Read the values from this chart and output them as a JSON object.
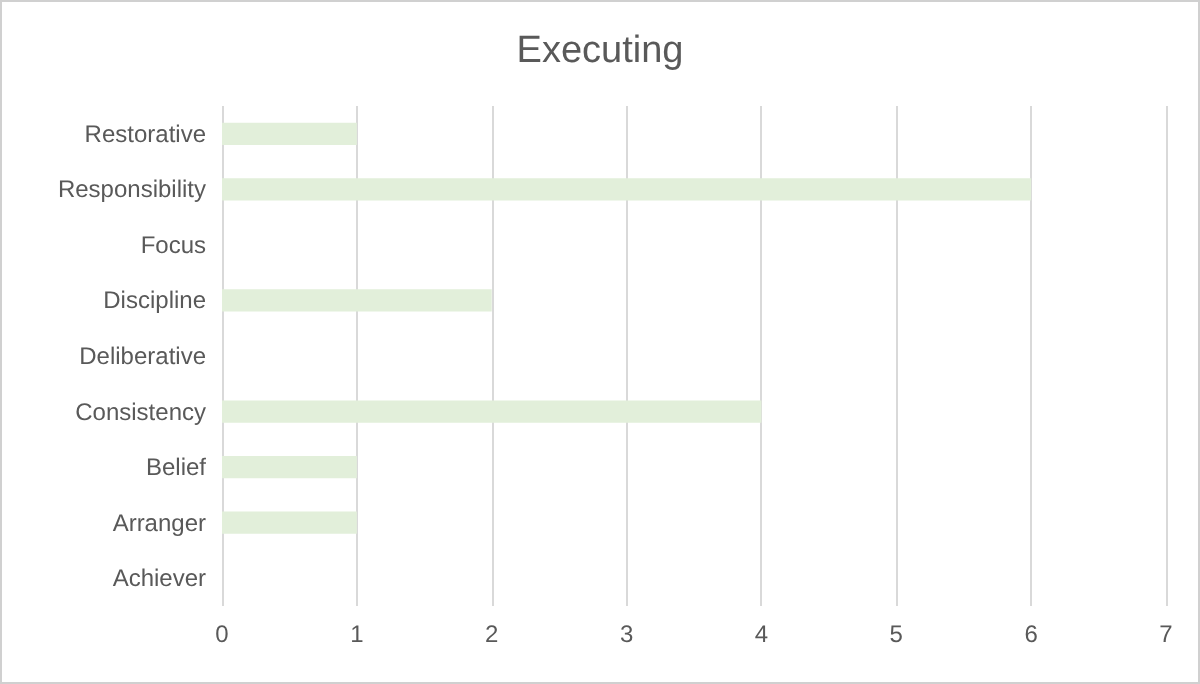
{
  "chart_data": {
    "type": "bar",
    "orientation": "horizontal",
    "title": "Executing",
    "categories": [
      "Restorative",
      "Responsibility",
      "Focus",
      "Discipline",
      "Deliberative",
      "Consistency",
      "Belief",
      "Arranger",
      "Achiever"
    ],
    "values": [
      1,
      6,
      0,
      2,
      0,
      4,
      1,
      1,
      0
    ],
    "color": "#e2efda",
    "xlim": [
      0,
      7
    ],
    "xticks": [
      0,
      1,
      2,
      3,
      4,
      5,
      6,
      7
    ],
    "grid": "x"
  }
}
